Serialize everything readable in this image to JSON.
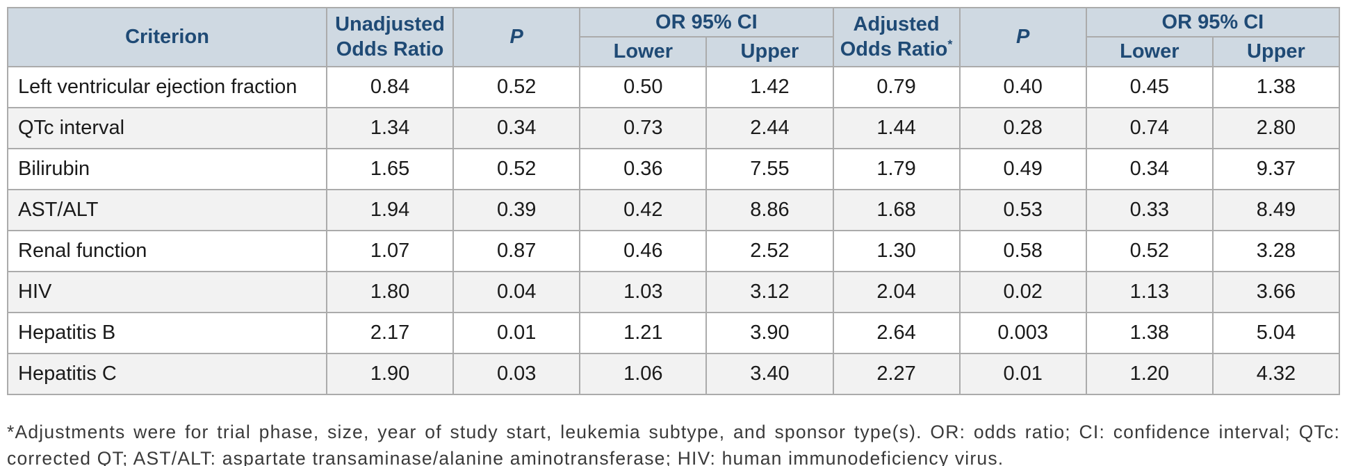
{
  "table": {
    "headers": {
      "criterion": "Criterion",
      "unadjusted_or": "Unadjusted Odds Ratio",
      "p_unadjusted": "P",
      "or_ci_unadjusted": "OR 95% CI",
      "lower_unadjusted": "Lower",
      "upper_unadjusted": "Upper",
      "adjusted_or": "Adjusted Odds Ratio",
      "adjusted_or_superscript": "*",
      "p_adjusted": "P",
      "or_ci_adjusted": "OR 95% CI",
      "lower_adjusted": "Lower",
      "upper_adjusted": "Upper"
    },
    "rows": [
      {
        "criterion": "Left ventricular ejection fraction",
        "values": [
          "0.84",
          "0.52",
          "0.50",
          "1.42",
          "0.79",
          "0.40",
          "0.45",
          "1.38"
        ]
      },
      {
        "criterion": "QTc interval",
        "values": [
          "1.34",
          "0.34",
          "0.73",
          "2.44",
          "1.44",
          "0.28",
          "0.74",
          "2.80"
        ]
      },
      {
        "criterion": "Bilirubin",
        "values": [
          "1.65",
          "0.52",
          "0.36",
          "7.55",
          "1.79",
          "0.49",
          "0.34",
          "9.37"
        ]
      },
      {
        "criterion": "AST/ALT",
        "values": [
          "1.94",
          "0.39",
          "0.42",
          "8.86",
          "1.68",
          "0.53",
          "0.33",
          "8.49"
        ]
      },
      {
        "criterion": "Renal function",
        "values": [
          "1.07",
          "0.87",
          "0.46",
          "2.52",
          "1.30",
          "0.58",
          "0.52",
          "3.28"
        ]
      },
      {
        "criterion": "HIV",
        "values": [
          "1.80",
          "0.04",
          "1.03",
          "3.12",
          "2.04",
          "0.02",
          "1.13",
          "3.66"
        ]
      },
      {
        "criterion": "Hepatitis B",
        "values": [
          "2.17",
          "0.01",
          "1.21",
          "3.90",
          "2.64",
          "0.003",
          "1.38",
          "5.04"
        ]
      },
      {
        "criterion": "Hepatitis C",
        "values": [
          "1.90",
          "0.03",
          "1.06",
          "3.40",
          "2.27",
          "0.01",
          "1.20",
          "4.32"
        ]
      }
    ]
  },
  "footnote": "*Adjustments were for trial phase, size, year of study start, leukemia subtype, and sponsor type(s). OR: odds ratio; CI: confidence interval; QTc: corrected QT; AST/ALT: aspartate transaminase/alanine aminotransferase; HIV: human immunodeficiency virus.",
  "colors": {
    "header_bg": "#cfd9e2",
    "header_text": "#1f4a75",
    "border": "#ababab",
    "row_stripe": "#f2f2f2",
    "body_text": "#1a1a1a",
    "footnote_text": "#3a3a3a"
  }
}
